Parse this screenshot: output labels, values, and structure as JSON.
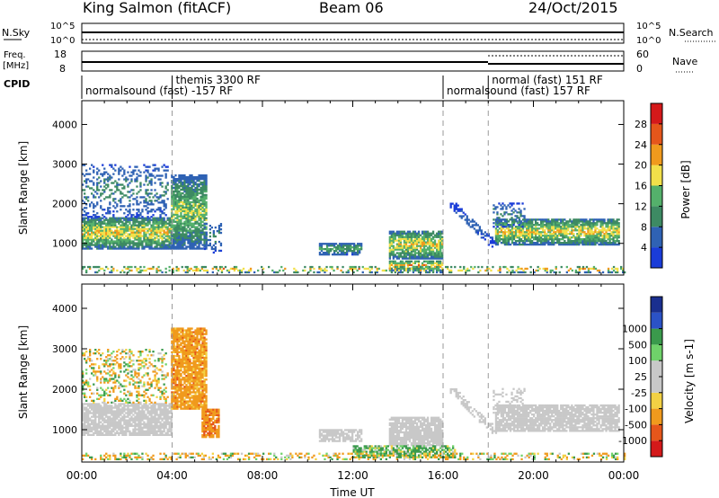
{
  "header": {
    "station": "King Salmon (fitACF)",
    "beam": "Beam 06",
    "date": "24/Oct/2015"
  },
  "strip_labels": {
    "nsky": "N.Sky",
    "nsky_top": "10^5",
    "nsky_bot": "10^0",
    "nsearch": "N.Search",
    "nsearch_top": "10^5",
    "nsearch_bot": "10^0",
    "freq_l1": "Freq.",
    "freq_l2": "[MHz]",
    "freq_top": "18",
    "freq_bot": "8",
    "nave": "Nave",
    "nave_top": "60",
    "nave_bot": "0",
    "cpid": "CPID"
  },
  "cpid_labels": [
    {
      "text": "normalsound (fast) -157 RF",
      "x_hour": 0.0,
      "row": "low"
    },
    {
      "text": "themis 3300 RF",
      "x_hour": 4.0,
      "row": "high"
    },
    {
      "text": "normalsound (fast) 157 RF",
      "x_hour": 16.0,
      "row": "low"
    },
    {
      "text": "normal (fast) 151 RF",
      "x_hour": 18.0,
      "row": "high"
    }
  ],
  "colors": {
    "power": [
      "#1a3cd8",
      "#2f62b4",
      "#3d8a63",
      "#54b06b",
      "#f2e04a",
      "#f09a1d",
      "#e5561b",
      "#d4191a"
    ],
    "velocity": [
      "#d4191a",
      "#e5561b",
      "#f09a1d",
      "#f3d144",
      "#c8c8c8",
      "#c8c8c8",
      "#6fd26a",
      "#3a9a4c",
      "#2b52c6",
      "#1a2f8f"
    ],
    "grey": "#c8c8c8"
  },
  "chart_data": [
    {
      "type": "heatmap",
      "name": "power",
      "xlabel": "",
      "ylabel": "Slant Range [km]",
      "x_range_hours": [
        0,
        24
      ],
      "ylim": [
        200,
        4600
      ],
      "yticks": [
        1000,
        2000,
        3000,
        4000
      ],
      "colorbar_label": "Power [dB]",
      "colorbar_ticks": [
        "4",
        "8",
        "12",
        "16",
        "20",
        "24",
        "28"
      ],
      "colorbar_range": [
        0,
        32
      ],
      "dashed_hours": [
        4,
        16,
        18
      ],
      "regions": [
        {
          "t": [
            0.0,
            3.95
          ],
          "r": [
            850,
            1650
          ],
          "pmax": 24,
          "kind": "band"
        },
        {
          "t": [
            0.0,
            3.8
          ],
          "r": [
            1650,
            3000
          ],
          "pmax": 12,
          "kind": "sparse"
        },
        {
          "t": [
            3.95,
            5.5
          ],
          "r": [
            850,
            2700
          ],
          "pmax": 20,
          "kind": "band"
        },
        {
          "t": [
            5.4,
            6.2
          ],
          "r": [
            750,
            1500
          ],
          "pmax": 12,
          "kind": "sparse"
        },
        {
          "t": [
            10.5,
            12.4
          ],
          "r": [
            700,
            1000
          ],
          "pmax": 16,
          "kind": "patch"
        },
        {
          "t": [
            13.6,
            16.0
          ],
          "r": [
            600,
            1300
          ],
          "pmax": 24,
          "kind": "band"
        },
        {
          "t": [
            13.6,
            16.0
          ],
          "r": [
            300,
            550
          ],
          "pmax": 28,
          "kind": "patch"
        },
        {
          "t": [
            0.0,
            24.0
          ],
          "r": [
            250,
            400
          ],
          "pmax": 28,
          "kind": "floor"
        },
        {
          "t": [
            16.3,
            18.3
          ],
          "r": [
            900,
            2000
          ],
          "pmax": 8,
          "kind": "arc"
        },
        {
          "t": [
            18.3,
            23.8
          ],
          "r": [
            950,
            1600
          ],
          "pmax": 24,
          "kind": "band"
        },
        {
          "t": [
            18.2,
            19.6
          ],
          "r": [
            1400,
            2000
          ],
          "pmax": 12,
          "kind": "sparse"
        }
      ]
    },
    {
      "type": "heatmap",
      "name": "velocity",
      "xlabel": "Time UT",
      "ylabel": "Slant Range [km]",
      "x_range_hours": [
        0,
        24
      ],
      "ylim": [
        200,
        4600
      ],
      "yticks": [
        1000,
        2000,
        3000,
        4000
      ],
      "xticks": [
        "00:00",
        "04:00",
        "08:00",
        "12:00",
        "16:00",
        "20:00",
        "00:00"
      ],
      "colorbar_label": "Velocity [m s-1]",
      "colorbar_ticks": [
        "-1000",
        "-500",
        "-100",
        "-25",
        "25",
        "100",
        "500",
        "1000"
      ],
      "dashed_hours": [
        4,
        16,
        18
      ],
      "regions": [
        {
          "t": [
            0.0,
            3.95
          ],
          "r": [
            850,
            1650
          ],
          "vel": 0,
          "kind": "band"
        },
        {
          "t": [
            0.0,
            3.8
          ],
          "r": [
            1650,
            3000
          ],
          "vel": -50,
          "kind": "sparse"
        },
        {
          "t": [
            3.95,
            5.5
          ],
          "r": [
            1500,
            3500
          ],
          "vel": -300,
          "kind": "band"
        },
        {
          "t": [
            5.3,
            6.1
          ],
          "r": [
            800,
            1500
          ],
          "vel": -400,
          "kind": "band"
        },
        {
          "t": [
            10.5,
            12.4
          ],
          "r": [
            700,
            1000
          ],
          "vel": 0,
          "kind": "patch"
        },
        {
          "t": [
            13.6,
            16.0
          ],
          "r": [
            600,
            1300
          ],
          "vel": 0,
          "kind": "band"
        },
        {
          "t": [
            12.0,
            16.5
          ],
          "r": [
            300,
            600
          ],
          "vel": 150,
          "kind": "patch"
        },
        {
          "t": [
            0.0,
            24.0
          ],
          "r": [
            250,
            400
          ],
          "vel": -80,
          "kind": "floor"
        },
        {
          "t": [
            16.3,
            18.3
          ],
          "r": [
            900,
            2000
          ],
          "vel": 0,
          "kind": "arc"
        },
        {
          "t": [
            18.3,
            23.8
          ],
          "r": [
            950,
            1600
          ],
          "vel": 0,
          "kind": "band"
        },
        {
          "t": [
            18.2,
            19.6
          ],
          "r": [
            1400,
            2000
          ],
          "vel": 0,
          "kind": "sparse"
        }
      ]
    }
  ]
}
